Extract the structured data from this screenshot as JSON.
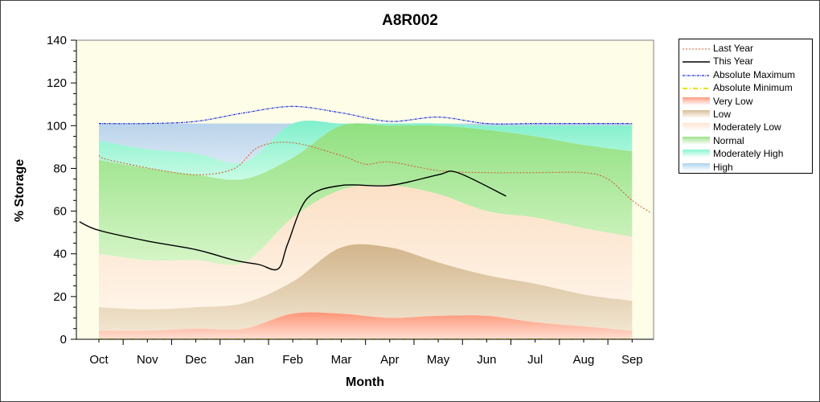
{
  "chart_data": {
    "type": "area",
    "title": "A8R002",
    "xlabel": "Month",
    "ylabel": "% Storage",
    "ylim": [
      0,
      140
    ],
    "yticks": [
      0,
      20,
      40,
      60,
      80,
      100,
      120,
      140
    ],
    "categories": [
      "Oct",
      "Nov",
      "Dec",
      "Jan",
      "Feb",
      "Mar",
      "Apr",
      "May",
      "Jun",
      "Jul",
      "Aug",
      "Sep"
    ],
    "grid": false,
    "legend_position": "right",
    "bands": {
      "x": [
        "Oct",
        "Nov",
        "Dec",
        "Jan",
        "Feb",
        "Mar",
        "Apr",
        "May",
        "Jun",
        "Jul",
        "Aug",
        "Sep"
      ],
      "absolute_minimum": [
        0,
        0,
        0,
        0,
        0,
        0,
        0,
        0,
        0,
        0,
        0,
        0
      ],
      "very_low": [
        4,
        4,
        5,
        5,
        12,
        12,
        10,
        11,
        11,
        8,
        6,
        4
      ],
      "low": [
        15,
        14,
        15,
        17,
        27,
        43,
        43,
        36,
        30,
        26,
        21,
        18
      ],
      "moderately_low": [
        40,
        37,
        37,
        36,
        57,
        70,
        72,
        68,
        60,
        57,
        52,
        48
      ],
      "normal": [
        84,
        80,
        77,
        75,
        85,
        100,
        100,
        100,
        98,
        95,
        91,
        88
      ],
      "moderately_high": [
        93,
        89,
        87,
        83,
        101,
        101,
        101,
        101,
        100,
        100,
        100,
        100
      ],
      "high": [
        101,
        101,
        101,
        101,
        101,
        101,
        101,
        101,
        101,
        101,
        101,
        101
      ]
    },
    "series": [
      {
        "name": "Last Year",
        "x": [
          "Oct",
          "Oct",
          "Nov",
          "Dec",
          "Jan",
          "Jan",
          "Feb",
          "Mar",
          "Apr",
          "Apr",
          "May",
          "Jun",
          "Jul",
          "Aug",
          "Aug",
          "Sep",
          "Sep"
        ],
        "x_offset": [
          0,
          0.2,
          0.3,
          0.1,
          -0.2,
          0.3,
          0.0,
          0.0,
          -0.5,
          0.0,
          0.0,
          0.0,
          0.0,
          0.0,
          0.5,
          0.0,
          0.4
        ],
        "values": [
          86,
          84,
          79,
          77,
          80,
          90,
          92,
          86,
          82,
          83,
          79,
          78,
          78,
          78,
          75,
          65,
          59
        ]
      },
      {
        "name": "This Year",
        "x": [
          "Oct",
          "Oct",
          "Nov",
          "Dec",
          "Jan",
          "Jan",
          "Feb",
          "Feb",
          "Feb",
          "Mar",
          "Apr",
          "May",
          "May",
          "Jun"
        ],
        "x_offset": [
          -0.4,
          0.0,
          0.0,
          0.0,
          -0.2,
          0.3,
          -0.3,
          -0.1,
          0.3,
          0.0,
          0.0,
          0.0,
          0.4,
          0.4
        ],
        "values": [
          55,
          51,
          46,
          42,
          37,
          35,
          33,
          45,
          66,
          72,
          72,
          77,
          78,
          67
        ]
      },
      {
        "name": "Absolute Maximum",
        "x": [
          "Oct",
          "Nov",
          "Dec",
          "Jan",
          "Feb",
          "Mar",
          "Apr",
          "May",
          "Jun",
          "Jul",
          "Aug",
          "Sep"
        ],
        "x_offset": [
          0,
          0,
          0,
          0,
          0,
          0,
          0,
          0,
          0,
          0,
          0,
          0
        ],
        "values": [
          101,
          101,
          102,
          106,
          109,
          106,
          102,
          104,
          101,
          101,
          101,
          101
        ]
      },
      {
        "name": "Absolute Minimum",
        "x": [
          "Oct",
          "Nov",
          "Dec",
          "Jan",
          "Feb",
          "Mar",
          "Apr",
          "May",
          "Jun",
          "Jul",
          "Aug",
          "Sep"
        ],
        "x_offset": [
          0,
          0,
          0,
          0,
          0,
          0,
          0,
          0,
          0,
          0,
          0,
          0
        ],
        "values": [
          0,
          0,
          0,
          0,
          0,
          0,
          0,
          0,
          0,
          0,
          0,
          0
        ]
      }
    ],
    "legend": [
      "Last Year",
      "This Year",
      "Absolute Maximum",
      "Absolute Minimum",
      "Very Low",
      "Low",
      "Moderately Low",
      "Normal",
      "Moderately High",
      "High"
    ],
    "colors": {
      "plot_bg": "#fdfde8",
      "last_year": "#d05a2a",
      "this_year": "#000000",
      "absolute_maximum": "#1f2fd6",
      "absolute_minimum": "#e8e000",
      "very_low": "#ff9c80",
      "low": "#d9be98",
      "moderately_low": "#fde5cf",
      "normal": "#9ce48c",
      "moderately_high": "#88f6d0",
      "high": "#aed4ee"
    }
  }
}
